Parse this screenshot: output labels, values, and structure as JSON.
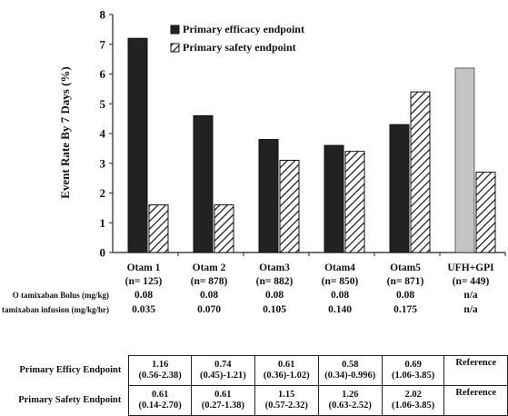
{
  "chart_data": {
    "type": "bar",
    "ylabel": "Event Rate By 7 Days (%)",
    "ylim": [
      0,
      8
    ],
    "yticks": [
      0,
      1,
      2,
      3,
      4,
      5,
      6,
      7,
      8
    ],
    "grid": false,
    "legend_position": "top",
    "categories": [
      "Otam 1",
      "Otam 2",
      "Otam3",
      "Otam4",
      "Otam5",
      "UFH+GPI"
    ],
    "category_n": [
      "(n= 125)",
      "(n= 878)",
      "(n= 882)",
      "(n= 850)",
      "(n= 871)",
      "(n= 449)"
    ],
    "series": [
      {
        "name": "Primary efficacy endpoint",
        "values": [
          7.2,
          4.6,
          3.8,
          3.6,
          4.3,
          6.2
        ],
        "fill": "#222222",
        "reference_fill": "#c4c4c4"
      },
      {
        "name": "Primary safety endpoint",
        "values": [
          1.6,
          1.6,
          3.1,
          3.4,
          5.4,
          2.7
        ],
        "fill": "hatched"
      }
    ],
    "dosing_rows": [
      {
        "label": "O tamixaban Bolus (mg/kg)",
        "values": [
          "0.08",
          "0.08",
          "0.08",
          "0.08",
          "0.08",
          "n/a"
        ]
      },
      {
        "label": "O tamixaban infusion (mg/kg/hr)",
        "values": [
          "0.035",
          "0.070",
          "0.105",
          "0.140",
          "0.175",
          "n/a"
        ]
      }
    ]
  },
  "results_table": [
    {
      "label": "Primary Efficy Endpoint",
      "values": [
        "1.16",
        "0.74",
        "0.61",
        "0.58",
        "0.69"
      ],
      "ci": [
        "(0.56-2.38)",
        "(0.45)-1.21)",
        "(0.36)-1.02)",
        "(0.34)-0.996)",
        "(1.06-3.85)"
      ],
      "reference": "Reference"
    },
    {
      "label": "Primary Safety Endpoint",
      "values": [
        "0.61",
        "0.61",
        "1.15",
        "1.26",
        "2.02"
      ],
      "ci": [
        "(0.14-2.70)",
        "(0.27-1.38)",
        "(0.57-2.32)",
        "(0.63-2.52)",
        "(1.06-3.85)"
      ],
      "reference": "Reference"
    }
  ]
}
